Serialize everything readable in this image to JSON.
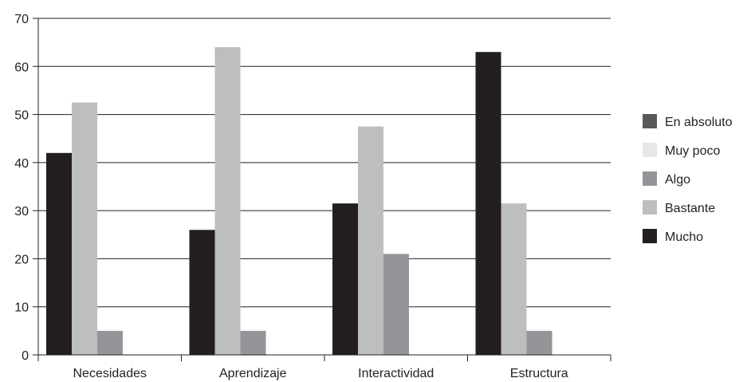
{
  "chart_data": {
    "type": "bar",
    "categories": [
      "Necesidades",
      "Aprendizaje",
      "Interactividad",
      "Estructura"
    ],
    "ylim": [
      0,
      70
    ],
    "yticks": [
      0,
      10,
      20,
      30,
      40,
      50,
      60,
      70
    ],
    "grid": true,
    "legend_position": "right",
    "series": [
      {
        "name": "Mucho",
        "color": "#231f20",
        "values": [
          42,
          26,
          31.5,
          63
        ]
      },
      {
        "name": "Bastante",
        "color": "#bcbec0",
        "values": [
          52.5,
          64,
          47.5,
          31.5
        ]
      },
      {
        "name": "Algo",
        "color": "#939598",
        "values": [
          5,
          5,
          21,
          5
        ]
      },
      {
        "name": "Muy poco",
        "color": "#e6e7e8",
        "values": [
          0,
          0,
          0,
          0
        ]
      },
      {
        "name": "En absoluto",
        "color": "#58595b",
        "values": [
          0,
          0,
          0,
          0
        ]
      }
    ],
    "legend_order": [
      "En absoluto",
      "Muy poco",
      "Algo",
      "Bastante",
      "Mucho"
    ]
  }
}
